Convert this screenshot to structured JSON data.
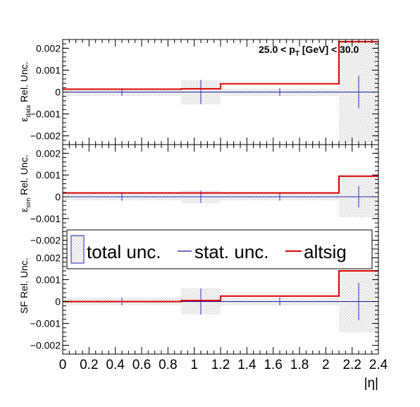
{
  "chart_data": [
    {
      "type": "step",
      "panel": "top",
      "ylabel": "ε_data Rel. Unc.",
      "ylabel_parts": {
        "eps": "ε",
        "sub": "data",
        "rest": "Rel. Unc."
      },
      "annotation": {
        "pre": "25.0 < p",
        "sub": "T",
        "post": " [GeV] < 30.0"
      },
      "ylim": [
        -0.0024,
        0.0024
      ],
      "yticks": [
        -0.002,
        -0.001,
        0,
        0.001,
        0.002
      ],
      "ytick_labels": [
        "−0.002",
        "−0.001",
        "0",
        "0.001",
        "0.002"
      ],
      "bins": [
        {
          "lo": 0.0,
          "hi": 0.9,
          "center": 0.45,
          "total": 0.00017,
          "stat": 0.00017,
          "altsig": 0.00013
        },
        {
          "lo": 0.9,
          "hi": 1.2,
          "center": 1.05,
          "total": 0.00055,
          "stat": 0.00055,
          "altsig": 0.00015
        },
        {
          "lo": 1.2,
          "hi": 2.1,
          "center": 1.65,
          "total": 0.00017,
          "stat": 0.00017,
          "altsig": 0.00038
        },
        {
          "lo": 2.1,
          "hi": 2.4,
          "center": 2.25,
          "total": 0.0023,
          "stat": 0.00075,
          "altsig": 0.0023
        }
      ]
    },
    {
      "type": "step",
      "panel": "middle",
      "ylabel": "ε_sim Rel. Unc.",
      "ylabel_parts": {
        "eps": "ε",
        "sub": "sim",
        "rest": "Rel. Unc."
      },
      "ylim": [
        -0.0024,
        0.0024
      ],
      "yticks": [
        -0.002,
        -0.001,
        0,
        0.001,
        0.002
      ],
      "ytick_labels": [
        "−0.002",
        "−0.001",
        "0",
        "0.001",
        "0.002"
      ],
      "bins": [
        {
          "lo": 0.0,
          "hi": 0.9,
          "center": 0.45,
          "total": 0.00018,
          "stat": 0.00018,
          "altsig": 0.00018
        },
        {
          "lo": 0.9,
          "hi": 1.2,
          "center": 1.05,
          "total": 0.00028,
          "stat": 0.00028,
          "altsig": 0.00018
        },
        {
          "lo": 1.2,
          "hi": 2.1,
          "center": 1.65,
          "total": 0.00018,
          "stat": 0.00018,
          "altsig": 0.00018
        },
        {
          "lo": 2.1,
          "hi": 2.4,
          "center": 2.25,
          "total": 0.00095,
          "stat": 0.0005,
          "altsig": 0.00095
        }
      ]
    },
    {
      "type": "step",
      "panel": "bottom",
      "ylabel": "SF Rel. Unc.",
      "xlabel": "|η|",
      "ylim": [
        -0.0024,
        0.0024
      ],
      "yticks": [
        -0.002,
        -0.001,
        0,
        0.001,
        0.002
      ],
      "ytick_labels": [
        "−0.002",
        "−0.001",
        "0",
        "0.001",
        "0.002"
      ],
      "xlim": [
        0,
        2.4
      ],
      "xticks": [
        0,
        0.2,
        0.4,
        0.6,
        0.8,
        1,
        1.2,
        1.4,
        1.6,
        1.8,
        2,
        2.2,
        2.4
      ],
      "xtick_labels": [
        "0",
        "0.2",
        "0.4",
        "0.6",
        "0.8",
        "1",
        "1.2",
        "1.4",
        "1.6",
        "1.8",
        "2",
        "2.2",
        "2.4"
      ],
      "bins": [
        {
          "lo": 0.0,
          "hi": 0.9,
          "center": 0.45,
          "total": 0.00017,
          "stat": 0.00017,
          "altsig": 0.0
        },
        {
          "lo": 0.9,
          "hi": 1.2,
          "center": 1.05,
          "total": 0.0006,
          "stat": 0.0006,
          "altsig": 5e-05
        },
        {
          "lo": 1.2,
          "hi": 2.1,
          "center": 1.65,
          "total": 0.00018,
          "stat": 0.00018,
          "altsig": 0.00025
        },
        {
          "lo": 2.1,
          "hi": 2.4,
          "center": 2.25,
          "total": 0.0014,
          "stat": 0.00085,
          "altsig": 0.0014
        }
      ]
    }
  ],
  "legend": {
    "placement": "middle-left",
    "entries": [
      {
        "label": "total unc.",
        "style": "hatched-box"
      },
      {
        "label": "stat. unc.",
        "style": "line",
        "color": "#0000cc"
      },
      {
        "label": "altsig",
        "style": "line",
        "color": "#dd0000"
      }
    ]
  },
  "colors": {
    "altsig": "#dd0000",
    "stat": "#1a1aaa",
    "zero_line": "#1a1aaa",
    "total_fill": "#666666"
  }
}
